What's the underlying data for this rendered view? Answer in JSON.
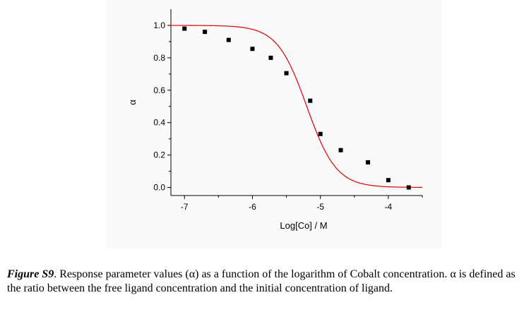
{
  "chart_data": {
    "type": "scatter",
    "title": "",
    "xlabel": "Log[Co] / M",
    "ylabel": "α",
    "xlim": [
      -7.2,
      -3.5
    ],
    "ylim": [
      -0.05,
      1.1
    ],
    "x_ticks": [
      -7,
      -6,
      -5,
      -4
    ],
    "x_tick_labels": [
      "-7",
      "-6",
      "-5",
      "-4"
    ],
    "y_ticks": [
      0.0,
      0.2,
      0.4,
      0.6,
      0.8,
      1.0
    ],
    "y_tick_labels": [
      "0.0",
      "0.2",
      "0.4",
      "0.6",
      "0.8",
      "1.0"
    ],
    "grid": false,
    "legend": "none",
    "series": [
      {
        "type": "scatter",
        "marker": "square",
        "color": "#000000",
        "points": [
          {
            "x": -7.0,
            "y": 0.98
          },
          {
            "x": -6.7,
            "y": 0.96
          },
          {
            "x": -6.35,
            "y": 0.91
          },
          {
            "x": -6.0,
            "y": 0.855
          },
          {
            "x": -5.73,
            "y": 0.8
          },
          {
            "x": -5.5,
            "y": 0.705
          },
          {
            "x": -5.15,
            "y": 0.535
          },
          {
            "x": -5.0,
            "y": 0.33
          },
          {
            "x": -4.7,
            "y": 0.23
          },
          {
            "x": -4.3,
            "y": 0.155
          },
          {
            "x": -4.0,
            "y": 0.045
          },
          {
            "x": -3.7,
            "y": 0.0
          }
        ]
      },
      {
        "type": "line",
        "color": "#dd1111",
        "fit": {
          "model": "logistic",
          "x0": -5.2,
          "k": 2.0,
          "x_range": [
            -7.2,
            -3.5
          ]
        }
      }
    ]
  },
  "caption": {
    "label": "Figure S9",
    "text": ". Response parameter values (α) as a function of the logarithm of Cobalt concentration. α is defined as the ratio between the free ligand concentration and the initial concentration of ligand."
  }
}
